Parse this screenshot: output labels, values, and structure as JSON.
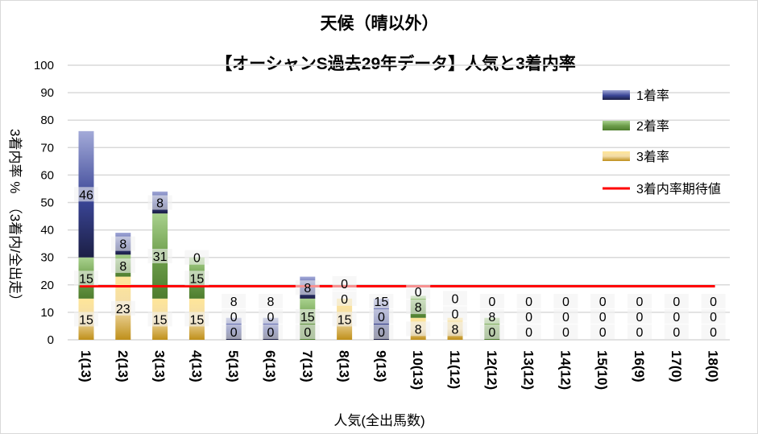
{
  "chart_data": {
    "type": "bar",
    "stacked": true,
    "title": "天候（晴以外）",
    "subtitle": "【オーシャンS過去29年データ】人気と3着内率",
    "xlabel": "人気(全出馬数)",
    "ylabel": "3着内率 %　（3着内/全出走）",
    "ylim": [
      0,
      100
    ],
    "yticks": [
      0,
      10,
      20,
      30,
      40,
      50,
      60,
      70,
      80,
      90,
      100
    ],
    "categories": [
      "1(13)",
      "2(13)",
      "3(13)",
      "4(13)",
      "5(13)",
      "6(13)",
      "7(13)",
      "8(13)",
      "9(13)",
      "10(13)",
      "11(12)",
      "12(12)",
      "13(12)",
      "14(12)",
      "15(10)",
      "16(9)",
      "17(0)",
      "18(0)"
    ],
    "series": [
      {
        "name": "3着率",
        "color": "#d9a62a",
        "values": [
          15,
          23,
          15,
          15,
          0,
          0,
          0,
          15,
          0,
          8,
          8,
          0,
          0,
          0,
          0,
          0,
          0,
          0
        ]
      },
      {
        "name": "2着率",
        "color": "#70ad47",
        "values": [
          15,
          8,
          31,
          15,
          0,
          0,
          15,
          0,
          0,
          8,
          0,
          8,
          0,
          0,
          0,
          0,
          0,
          0
        ]
      },
      {
        "name": "1着率",
        "color": "#4a55a2",
        "values": [
          46,
          8,
          8,
          0,
          8,
          8,
          8,
          0,
          15,
          0,
          0,
          0,
          0,
          0,
          0,
          0,
          0,
          0
        ]
      }
    ],
    "reference_line": {
      "name": "3着内率期待値",
      "value": 19.5,
      "color": "#ff0000"
    },
    "legend_position": "right",
    "grid": true
  }
}
